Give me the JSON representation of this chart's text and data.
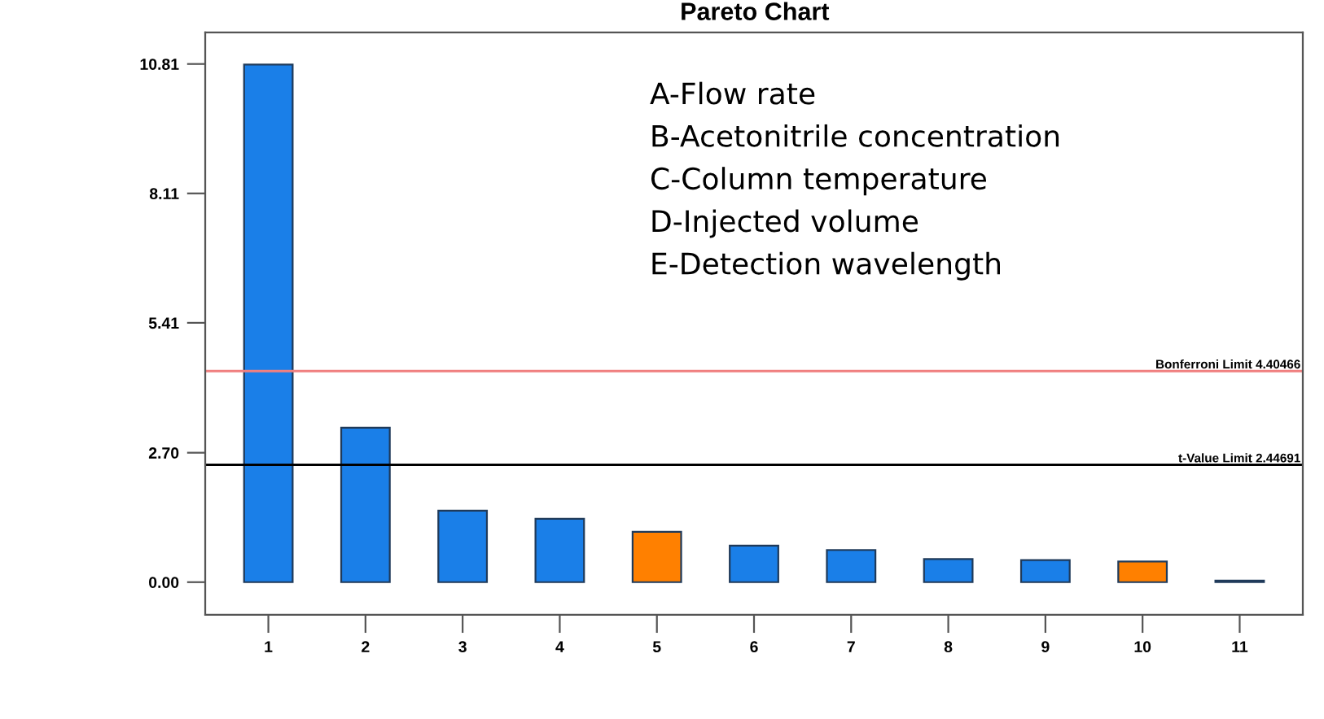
{
  "chart_data": {
    "type": "bar",
    "title": "Pareto Chart",
    "categories": [
      "1",
      "2",
      "3",
      "4",
      "5",
      "6",
      "7",
      "8",
      "9",
      "10",
      "11"
    ],
    "values": [
      10.8,
      3.22,
      1.49,
      1.32,
      1.05,
      0.76,
      0.67,
      0.48,
      0.46,
      0.43,
      0.03
    ],
    "colors": [
      "#1a7fe8",
      "#1a7fe8",
      "#1a7fe8",
      "#1a7fe8",
      "#ff8000",
      "#1a7fe8",
      "#1a7fe8",
      "#1a7fe8",
      "#1a7fe8",
      "#ff8000",
      "#1a7fe8"
    ],
    "ylim": [
      -0.68,
      11.47
    ],
    "yticks": [
      {
        "value": 0,
        "label": "0.00"
      },
      {
        "value": 2.7,
        "label": "2.70"
      },
      {
        "value": 5.41,
        "label": "5.41"
      },
      {
        "value": 8.11,
        "label": "8.11"
      },
      {
        "value": 10.81,
        "label": "10.81"
      }
    ],
    "ref_lines": [
      {
        "axis": "y",
        "value": 4.40466,
        "label": "Bonferroni Limit 4.40466",
        "color": "#f08080"
      },
      {
        "axis": "y",
        "value": 2.44691,
        "label": "t-Value Limit 2.44691",
        "color": "#000000"
      }
    ],
    "annotations": [
      "A-Flow rate",
      "B-Acetonitrile concentration",
      "C-Column temperature",
      "D-Injected volume",
      "E-Detection wavelength"
    ],
    "grid": false
  }
}
